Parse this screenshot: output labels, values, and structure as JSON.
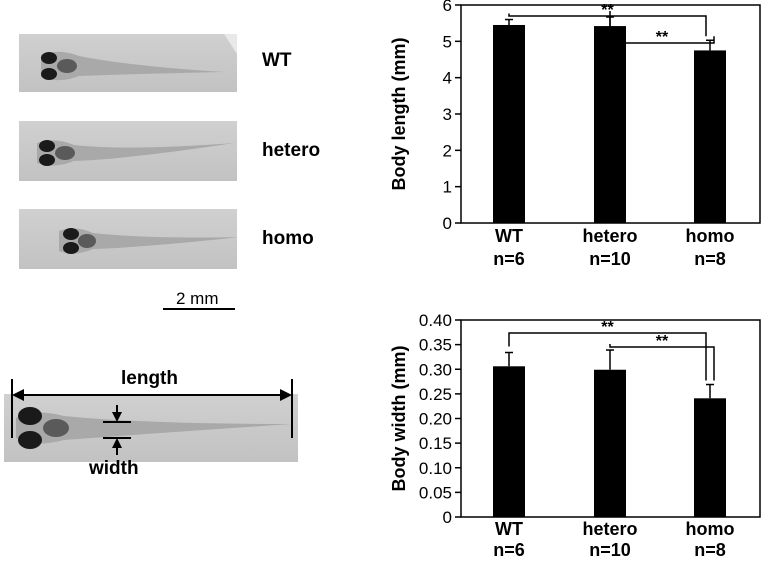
{
  "figure": {
    "images": [
      {
        "label": "WT"
      },
      {
        "label": "hetero"
      },
      {
        "label": "homo"
      }
    ],
    "scale_bar_label": "2 mm",
    "measure": {
      "length_label": "length",
      "width_label": "width"
    }
  },
  "chart_data": [
    {
      "type": "bar",
      "categories": [
        "WT",
        "hetero",
        "homo"
      ],
      "n_labels": [
        "n=6",
        "n=10",
        "n=8"
      ],
      "values": [
        5.45,
        5.42,
        4.75
      ],
      "errors": [
        0.15,
        0.25,
        0.28
      ],
      "ylabel": "Body length (mm)",
      "ylim": [
        0,
        6
      ],
      "yticks": [
        "0",
        "1",
        "2",
        "3",
        "4",
        "5",
        "6"
      ],
      "significance": [
        {
          "from": 0,
          "to": 2,
          "label": "**"
        },
        {
          "from": 1,
          "to": 2,
          "label": "**"
        }
      ]
    },
    {
      "type": "bar",
      "categories": [
        "WT",
        "hetero",
        "homo"
      ],
      "n_labels": [
        "n=6",
        "n=10",
        "n=8"
      ],
      "values": [
        0.306,
        0.299,
        0.241
      ],
      "errors": [
        0.028,
        0.04,
        0.028
      ],
      "ylabel": "Body width (mm)",
      "ylim": [
        0,
        0.4
      ],
      "yticks": [
        "0",
        "0.05",
        "0.10",
        "0.15",
        "0.20",
        "0.25",
        "0.30",
        "0.35",
        "0.40"
      ],
      "significance": [
        {
          "from": 0,
          "to": 2,
          "label": "**"
        },
        {
          "from": 1,
          "to": 2,
          "label": "**"
        }
      ]
    }
  ]
}
